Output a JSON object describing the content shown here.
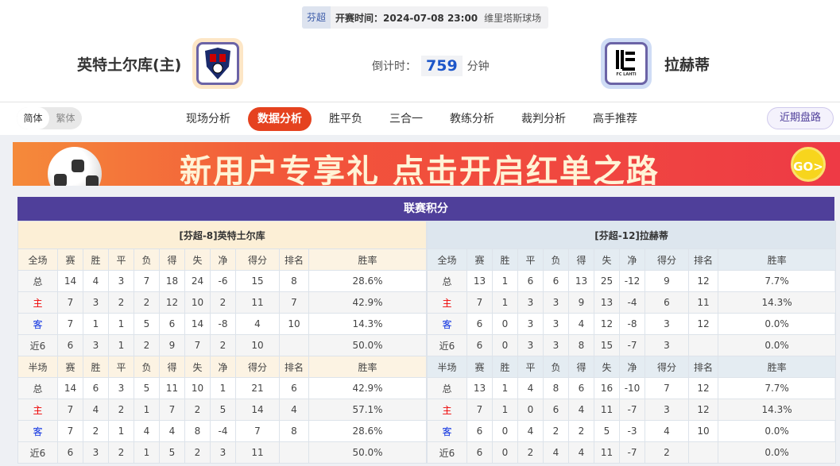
{
  "header": {
    "league": "芬超",
    "kickoff": "开赛时间：2024-07-08 23:00",
    "venue": "维里塔斯球场",
    "home": {
      "name": "英特土尔库(主)"
    },
    "away": {
      "name": "拉赫蒂",
      "logo_text": "FC LAHTI"
    },
    "countdown_label": "倒计时：",
    "countdown_value": "759",
    "countdown_unit": "分钟"
  },
  "nav": {
    "lang": [
      "简体",
      "繁体"
    ],
    "tabs": [
      "现场分析",
      "数据分析",
      "胜平负",
      "三合一",
      "教练分析",
      "裁判分析",
      "高手推荐"
    ],
    "active_tab": "数据分析",
    "recent": "近期盘路"
  },
  "banner": {
    "text": "新用户专享礼  点击开启红单之路",
    "go": "GO>"
  },
  "standings": {
    "title": "联赛积分",
    "columns_full": [
      "全场",
      "赛",
      "胜",
      "平",
      "负",
      "得",
      "失",
      "净",
      "得分",
      "排名",
      "胜率"
    ],
    "columns_half": [
      "半场",
      "赛",
      "胜",
      "平",
      "负",
      "得",
      "失",
      "净",
      "得分",
      "排名",
      "胜率"
    ],
    "home": {
      "title": "[芬超-8]英特土尔库",
      "full": [
        [
          "总",
          "14",
          "4",
          "3",
          "7",
          "18",
          "24",
          "-6",
          "15",
          "8",
          "28.6%"
        ],
        [
          "主",
          "7",
          "3",
          "2",
          "2",
          "12",
          "10",
          "2",
          "11",
          "7",
          "42.9%"
        ],
        [
          "客",
          "7",
          "1",
          "1",
          "5",
          "6",
          "14",
          "-8",
          "4",
          "10",
          "14.3%"
        ],
        [
          "近6",
          "6",
          "3",
          "1",
          "2",
          "9",
          "7",
          "2",
          "10",
          "",
          "50.0%"
        ]
      ],
      "half": [
        [
          "总",
          "14",
          "6",
          "3",
          "5",
          "11",
          "10",
          "1",
          "21",
          "6",
          "42.9%"
        ],
        [
          "主",
          "7",
          "4",
          "2",
          "1",
          "7",
          "2",
          "5",
          "14",
          "4",
          "57.1%"
        ],
        [
          "客",
          "7",
          "2",
          "1",
          "4",
          "4",
          "8",
          "-4",
          "7",
          "8",
          "28.6%"
        ],
        [
          "近6",
          "6",
          "3",
          "2",
          "1",
          "5",
          "2",
          "3",
          "11",
          "",
          "50.0%"
        ]
      ]
    },
    "away": {
      "title": "[芬超-12]拉赫蒂",
      "full": [
        [
          "总",
          "13",
          "1",
          "6",
          "6",
          "13",
          "25",
          "-12",
          "9",
          "12",
          "7.7%"
        ],
        [
          "主",
          "7",
          "1",
          "3",
          "3",
          "9",
          "13",
          "-4",
          "6",
          "11",
          "14.3%"
        ],
        [
          "客",
          "6",
          "0",
          "3",
          "3",
          "4",
          "12",
          "-8",
          "3",
          "12",
          "0.0%"
        ],
        [
          "近6",
          "6",
          "0",
          "3",
          "3",
          "8",
          "15",
          "-7",
          "3",
          "",
          "0.0%"
        ]
      ],
      "half": [
        [
          "总",
          "13",
          "1",
          "4",
          "8",
          "6",
          "16",
          "-10",
          "7",
          "12",
          "7.7%"
        ],
        [
          "主",
          "7",
          "1",
          "0",
          "6",
          "4",
          "11",
          "-7",
          "3",
          "12",
          "14.3%"
        ],
        [
          "客",
          "6",
          "0",
          "4",
          "2",
          "2",
          "5",
          "-3",
          "4",
          "10",
          "0.0%"
        ],
        [
          "近6",
          "6",
          "0",
          "2",
          "4",
          "4",
          "11",
          "-7",
          "2",
          "",
          "0.0%"
        ]
      ]
    }
  },
  "colors": {
    "title_bar": "#4f3f9a",
    "active_tab": "#e5421f",
    "home_label": "#e00000",
    "away_label": "#0a2ee0"
  }
}
